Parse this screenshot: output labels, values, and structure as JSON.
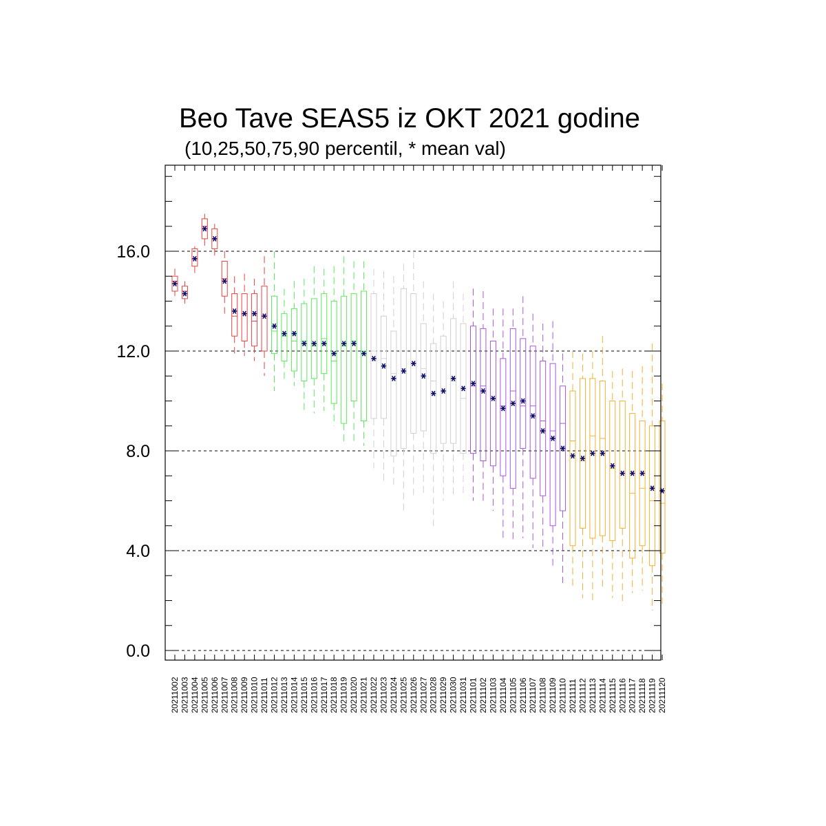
{
  "chart_data": {
    "type": "box",
    "title": "Beo Tave SEAS5 iz OKT 2021 godine",
    "subtitle": "(10,25,50,75,90 percentil, * mean val)",
    "xlabel": "",
    "ylabel": "",
    "ylim": [
      -0.3,
      19.3
    ],
    "yticks": [
      "0.0",
      "4.0",
      "8.0",
      "12.0",
      "16.0"
    ],
    "ytick_values": [
      0,
      4,
      8,
      12,
      16
    ],
    "grid": "horizontal dashed at major ticks",
    "mean_marker": "*",
    "colors": {
      "red": "#e8413f",
      "green": "#5be85b",
      "gray": "#d0d0d0",
      "purple": "#a855e0",
      "orange": "#f2b030",
      "mean": "#0a0a6a",
      "grid": "#000000"
    },
    "categories": [
      "20211002",
      "20211003",
      "20211004",
      "20211005",
      "20211006",
      "20211007",
      "20211008",
      "20211009",
      "20211010",
      "20211011",
      "20211012",
      "20211013",
      "20211014",
      "20211015",
      "20211016",
      "20211017",
      "20211018",
      "20211019",
      "20211020",
      "20211021",
      "20211022",
      "20211023",
      "20211024",
      "20211025",
      "20211026",
      "20211027",
      "20211028",
      "20211029",
      "20211030",
      "20211031",
      "20211101",
      "20211102",
      "20211103",
      "20211104",
      "20211105",
      "20211106",
      "20211107",
      "20211108",
      "20211109",
      "20211110",
      "20211111",
      "20211112",
      "20211113",
      "20211114",
      "20211115",
      "20211116",
      "20211117",
      "20211118",
      "20211119",
      "20211120"
    ],
    "boxes": [
      {
        "p10": 14.2,
        "p25": 14.4,
        "p50": 14.8,
        "p75": 15.0,
        "p90": 15.3,
        "mean": 14.7,
        "color": "red"
      },
      {
        "p10": 13.9,
        "p25": 14.1,
        "p50": 14.4,
        "p75": 14.6,
        "p90": 14.8,
        "mean": 14.3,
        "color": "red"
      },
      {
        "p10": 15.1,
        "p25": 15.4,
        "p50": 15.7,
        "p75": 16.1,
        "p90": 16.2,
        "mean": 15.7,
        "color": "red"
      },
      {
        "p10": 16.2,
        "p25": 16.5,
        "p50": 17.0,
        "p75": 17.3,
        "p90": 17.5,
        "mean": 16.9,
        "color": "red"
      },
      {
        "p10": 15.7,
        "p25": 16.1,
        "p50": 16.5,
        "p75": 16.9,
        "p90": 17.1,
        "mean": 16.5,
        "color": "red"
      },
      {
        "p10": 13.5,
        "p25": 14.2,
        "p50": 14.9,
        "p75": 15.6,
        "p90": 16.0,
        "mean": 14.8,
        "color": "red"
      },
      {
        "p10": 11.9,
        "p25": 12.6,
        "p50": 13.4,
        "p75": 14.3,
        "p90": 15.0,
        "mean": 13.6,
        "color": "red"
      },
      {
        "p10": 11.8,
        "p25": 12.4,
        "p50": 13.5,
        "p75": 14.3,
        "p90": 15.1,
        "mean": 13.5,
        "color": "red"
      },
      {
        "p10": 11.6,
        "p25": 12.2,
        "p50": 13.2,
        "p75": 14.3,
        "p90": 14.9,
        "mean": 13.5,
        "color": "red"
      },
      {
        "p10": 11.0,
        "p25": 12.0,
        "p50": 13.4,
        "p75": 14.6,
        "p90": 15.8,
        "mean": 13.4,
        "color": "red"
      },
      {
        "p10": 10.4,
        "p25": 11.9,
        "p50": 12.8,
        "p75": 14.2,
        "p90": 16.0,
        "mean": 13.0,
        "color": "green"
      },
      {
        "p10": 10.8,
        "p25": 11.6,
        "p50": 12.6,
        "p75": 13.5,
        "p90": 14.5,
        "mean": 12.7,
        "color": "green"
      },
      {
        "p10": 10.6,
        "p25": 11.2,
        "p50": 12.4,
        "p75": 13.7,
        "p90": 14.8,
        "mean": 12.7,
        "color": "green"
      },
      {
        "p10": 9.6,
        "p25": 10.8,
        "p50": 12.4,
        "p75": 13.9,
        "p90": 14.9,
        "mean": 12.3,
        "color": "green"
      },
      {
        "p10": 9.5,
        "p25": 10.9,
        "p50": 12.2,
        "p75": 14.1,
        "p90": 15.4,
        "mean": 12.3,
        "color": "green"
      },
      {
        "p10": 9.6,
        "p25": 11.1,
        "p50": 12.5,
        "p75": 14.3,
        "p90": 15.3,
        "mean": 12.3,
        "color": "green"
      },
      {
        "p10": 9.0,
        "p25": 9.9,
        "p50": 11.6,
        "p75": 14.0,
        "p90": 15.4,
        "mean": 11.9,
        "color": "green"
      },
      {
        "p10": 8.3,
        "p25": 9.1,
        "p50": 12.2,
        "p75": 14.2,
        "p90": 15.8,
        "mean": 12.3,
        "color": "green"
      },
      {
        "p10": 8.3,
        "p25": 10.0,
        "p50": 12.4,
        "p75": 14.3,
        "p90": 15.6,
        "mean": 12.3,
        "color": "green"
      },
      {
        "p10": 8.2,
        "p25": 9.2,
        "p50": 12.0,
        "p75": 14.4,
        "p90": 15.6,
        "mean": 11.9,
        "color": "green"
      },
      {
        "p10": 7.3,
        "p25": 9.3,
        "p50": 12.0,
        "p75": 14.3,
        "p90": 15.3,
        "mean": 11.7,
        "color": "gray"
      },
      {
        "p10": 6.8,
        "p25": 9.3,
        "p50": 11.7,
        "p75": 13.4,
        "p90": 15.2,
        "mean": 11.4,
        "color": "gray"
      },
      {
        "p10": 6.6,
        "p25": 7.8,
        "p50": 11.1,
        "p75": 12.8,
        "p90": 15.0,
        "mean": 10.9,
        "color": "gray"
      },
      {
        "p10": 5.5,
        "p25": 8.1,
        "p50": 11.3,
        "p75": 14.5,
        "p90": 15.5,
        "mean": 11.2,
        "color": "gray"
      },
      {
        "p10": 6.2,
        "p25": 8.7,
        "p50": 11.5,
        "p75": 14.3,
        "p90": 16.0,
        "mean": 11.5,
        "color": "gray"
      },
      {
        "p10": 6.2,
        "p25": 8.8,
        "p50": 11.3,
        "p75": 13.1,
        "p90": 14.8,
        "mean": 11.0,
        "color": "gray"
      },
      {
        "p10": 4.9,
        "p25": 7.9,
        "p50": 10.8,
        "p75": 12.3,
        "p90": 14.3,
        "mean": 10.3,
        "color": "gray"
      },
      {
        "p10": 6.0,
        "p25": 8.3,
        "p50": 10.4,
        "p75": 12.6,
        "p90": 14.0,
        "mean": 10.4,
        "color": "gray"
      },
      {
        "p10": 6.2,
        "p25": 8.3,
        "p50": 10.8,
        "p75": 13.3,
        "p90": 14.8,
        "mean": 10.9,
        "color": "gray"
      },
      {
        "p10": 6.3,
        "p25": 7.9,
        "p50": 10.1,
        "p75": 13.1,
        "p90": 14.3,
        "mean": 10.5,
        "color": "gray"
      },
      {
        "p10": 6.0,
        "p25": 7.9,
        "p50": 10.6,
        "p75": 13.0,
        "p90": 14.5,
        "mean": 10.7,
        "color": "purple"
      },
      {
        "p10": 6.0,
        "p25": 7.6,
        "p50": 10.6,
        "p75": 12.9,
        "p90": 14.4,
        "mean": 10.4,
        "color": "purple"
      },
      {
        "p10": 5.6,
        "p25": 7.4,
        "p50": 10.1,
        "p75": 12.4,
        "p90": 13.7,
        "mean": 10.1,
        "color": "purple"
      },
      {
        "p10": 4.4,
        "p25": 7.0,
        "p50": 9.8,
        "p75": 11.7,
        "p90": 13.7,
        "mean": 9.7,
        "color": "purple"
      },
      {
        "p10": 4.3,
        "p25": 6.5,
        "p50": 10.4,
        "p75": 12.9,
        "p90": 13.7,
        "mean": 9.9,
        "color": "purple"
      },
      {
        "p10": 4.5,
        "p25": 8.1,
        "p50": 9.8,
        "p75": 12.5,
        "p90": 14.2,
        "mean": 10.0,
        "color": "purple"
      },
      {
        "p10": 4.1,
        "p25": 6.9,
        "p50": 9.8,
        "p75": 12.2,
        "p90": 13.5,
        "mean": 9.4,
        "color": "purple"
      },
      {
        "p10": 4.0,
        "p25": 6.2,
        "p50": 9.2,
        "p75": 11.6,
        "p90": 13.1,
        "mean": 8.8,
        "color": "purple"
      },
      {
        "p10": 3.4,
        "p25": 5.0,
        "p50": 8.8,
        "p75": 11.5,
        "p90": 13.2,
        "mean": 8.5,
        "color": "purple"
      },
      {
        "p10": 2.7,
        "p25": 5.6,
        "p50": 9.1,
        "p75": 10.6,
        "p90": 11.9,
        "mean": 8.1,
        "color": "purple"
      },
      {
        "p10": 2.5,
        "p25": 4.2,
        "p50": 8.4,
        "p75": 10.4,
        "p90": 12.0,
        "mean": 7.8,
        "color": "orange"
      },
      {
        "p10": 2.1,
        "p25": 4.9,
        "p50": 7.6,
        "p75": 10.9,
        "p90": 11.9,
        "mean": 7.7,
        "color": "orange"
      },
      {
        "p10": 2.0,
        "p25": 4.5,
        "p50": 8.6,
        "p75": 10.9,
        "p90": 12.0,
        "mean": 7.9,
        "color": "orange"
      },
      {
        "p10": 2.4,
        "p25": 4.6,
        "p50": 8.5,
        "p75": 10.8,
        "p90": 12.6,
        "mean": 7.9,
        "color": "orange"
      },
      {
        "p10": 2.1,
        "p25": 4.4,
        "p50": 7.3,
        "p75": 10.0,
        "p90": 11.2,
        "mean": 7.4,
        "color": "orange"
      },
      {
        "p10": 1.8,
        "p25": 4.9,
        "p50": 7.1,
        "p75": 10.0,
        "p90": 11.3,
        "mean": 7.1,
        "color": "orange"
      },
      {
        "p10": 2.3,
        "p25": 3.7,
        "p50": 6.3,
        "p75": 9.5,
        "p90": 11.2,
        "mean": 7.1,
        "color": "orange"
      },
      {
        "p10": 2.4,
        "p25": 4.2,
        "p50": 6.5,
        "p75": 9.2,
        "p90": 11.4,
        "mean": 7.1,
        "color": "orange"
      },
      {
        "p10": 1.6,
        "p25": 3.4,
        "p50": 6.0,
        "p75": 9.0,
        "p90": 12.3,
        "mean": 6.5,
        "color": "orange"
      },
      {
        "p10": 1.8,
        "p25": 3.9,
        "p50": 5.9,
        "p75": 9.2,
        "p90": 10.7,
        "mean": 6.4,
        "color": "orange"
      }
    ]
  }
}
